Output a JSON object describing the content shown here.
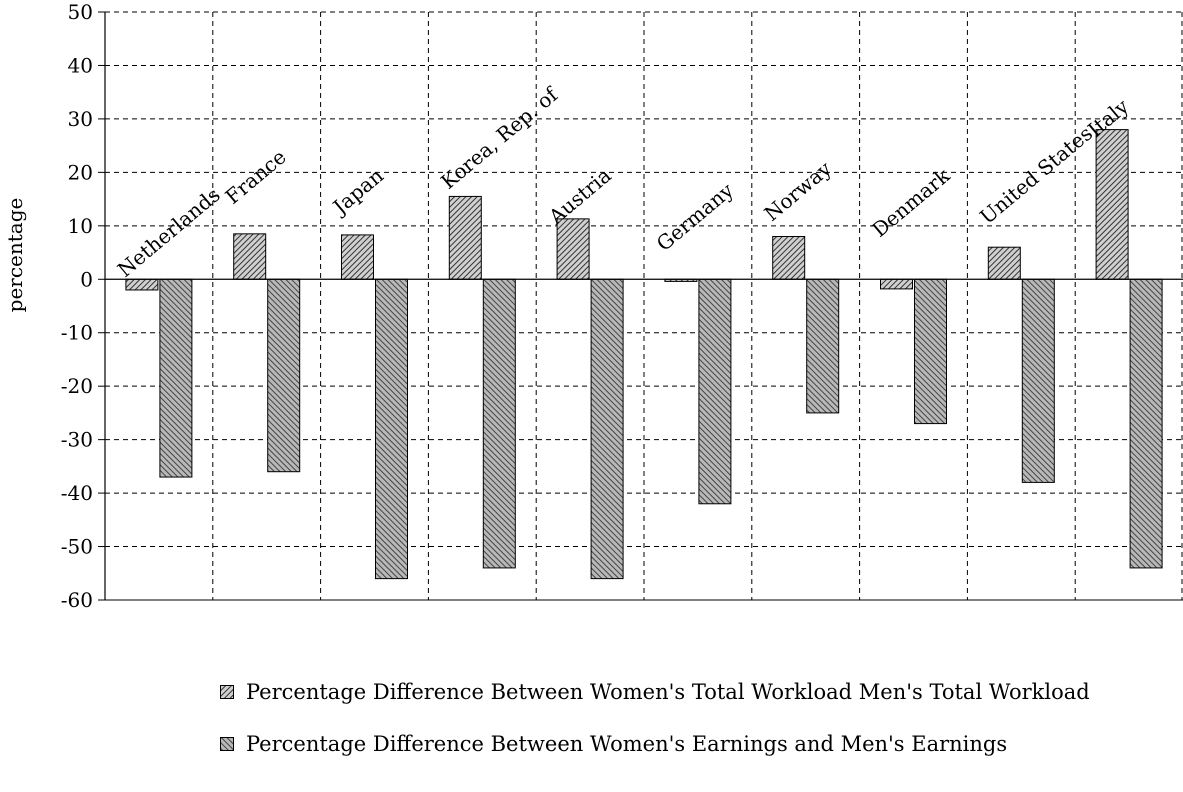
{
  "chart_data": {
    "type": "bar",
    "title": "",
    "xlabel": "",
    "ylabel": "percentage",
    "ylim": [
      -60,
      50
    ],
    "yticks": [
      50,
      40,
      30,
      20,
      10,
      0,
      -10,
      -20,
      -30,
      -40,
      -50,
      -60
    ],
    "grid": true,
    "legend_position": "bottom",
    "categories": [
      "Netherlands",
      "France",
      "Japan",
      "Korea, Rep. of",
      "Austria",
      "Germany",
      "Norway",
      "Denmark",
      "United States",
      "Italy"
    ],
    "series": [
      {
        "name": "Percentage Difference Between Women's Total Workload Men's Total Workload",
        "values": [
          -2,
          8.5,
          8.3,
          15.5,
          11.3,
          -0.4,
          8,
          -1.8,
          6,
          28
        ]
      },
      {
        "name": "Percentage Difference Between Women's Earnings and Men's Earnings",
        "values": [
          -37,
          -36,
          -56,
          -54,
          -56,
          -42,
          -25,
          -27,
          -38,
          -54
        ]
      }
    ]
  },
  "colors": {
    "series1": "#a8a8a8",
    "series2": "#8f8f8f"
  }
}
